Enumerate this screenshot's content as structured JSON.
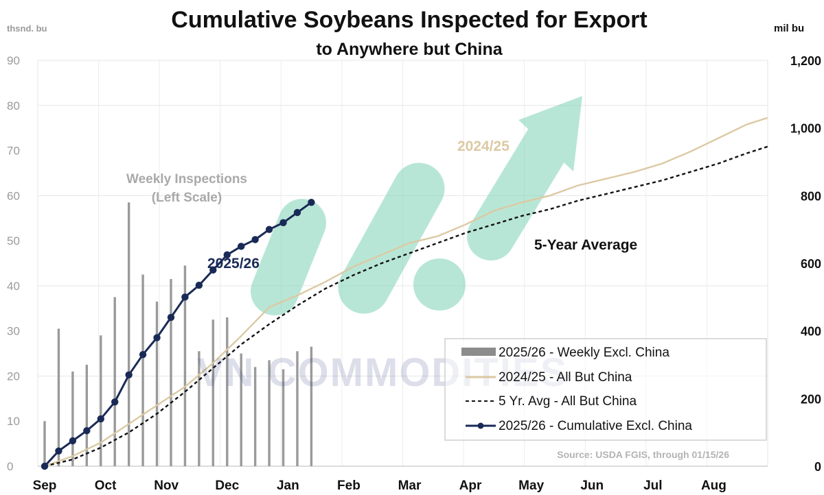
{
  "chart_data": {
    "type": "bar+line",
    "title": "Cumulative Soybeans Inspected for Export",
    "subtitle": "to Anywhere but China",
    "left_axis": {
      "label": "thsnd. bu",
      "ylim": [
        0,
        90
      ],
      "ticks": [
        "0",
        "10",
        "20",
        "30",
        "40",
        "50",
        "60",
        "70",
        "80",
        "90"
      ]
    },
    "right_axis": {
      "label": "mil bu",
      "ylim": [
        0,
        1200
      ],
      "ticks": [
        "0",
        "200",
        "400",
        "600",
        "800",
        "1,000",
        "1,200"
      ]
    },
    "x_ticks": [
      "Sep",
      "Oct",
      "Nov",
      "Dec",
      "Jan",
      "Feb",
      "Mar",
      "Apr",
      "May",
      "Jun",
      "Jul",
      "Aug"
    ],
    "weekly_bars": {
      "name": "2025/26 - Weekly Excl. China",
      "x_weeks": [
        0,
        1,
        2,
        3,
        4,
        5,
        6,
        7,
        8,
        9,
        10,
        11,
        12,
        13,
        14,
        15,
        16,
        17,
        18,
        19
      ],
      "values": [
        10,
        30.5,
        21,
        22.5,
        29,
        37.5,
        58.5,
        42.5,
        36.5,
        41.5,
        44.5,
        25.5,
        32.5,
        33,
        25,
        22,
        23.5,
        21.5,
        25.5,
        26.5
      ]
    },
    "series": [
      {
        "name": "2024/25 - All But China",
        "color": "#dcc9a3",
        "x_weeks": [
          0,
          2,
          4,
          6,
          8,
          10,
          12,
          14,
          16,
          18,
          20,
          22,
          24,
          26,
          28,
          30,
          32,
          34,
          36,
          38,
          40,
          42,
          44,
          46,
          48,
          50,
          51.5
        ],
        "values": [
          0,
          30,
          70,
          125,
          180,
          235,
          305,
          385,
          470,
          505,
          545,
          590,
          625,
          660,
          680,
          715,
          755,
          780,
          800,
          830,
          850,
          870,
          895,
          930,
          970,
          1010,
          1030
        ]
      },
      {
        "name": "5 Yr. Avg - All But China",
        "color": "#111111",
        "dash": true,
        "x_weeks": [
          0,
          2,
          4,
          6,
          8,
          10,
          12,
          14,
          16,
          18,
          20,
          22,
          24,
          26,
          28,
          30,
          32,
          34,
          36,
          38,
          40,
          42,
          44,
          46,
          48,
          50,
          51.5
        ],
        "values": [
          0,
          20,
          55,
          100,
          155,
          220,
          290,
          360,
          420,
          475,
          525,
          565,
          600,
          630,
          660,
          690,
          715,
          740,
          760,
          785,
          805,
          825,
          845,
          870,
          895,
          925,
          945
        ]
      },
      {
        "name": "2025/26 - Cumulative Excl. China",
        "color": "#1a2a57",
        "markers": true,
        "x_weeks": [
          0,
          1,
          2,
          3,
          4,
          5,
          6,
          7,
          8,
          9,
          10,
          11,
          12,
          13,
          14,
          15,
          16,
          17,
          18,
          19
        ],
        "values": [
          0,
          45,
          75,
          105,
          140,
          190,
          270,
          330,
          380,
          440,
          500,
          535,
          580,
          625,
          650,
          670,
          700,
          720,
          750,
          780
        ]
      }
    ],
    "annotations": {
      "weekly_line1": "Weekly Inspections",
      "weekly_line2": "(Left Scale)",
      "label_2526": "2025/26",
      "label_2425": "2024/25",
      "label_5yr": "5-Year Average"
    },
    "legend": [
      "2025/26 - Weekly Excl. China",
      "2024/25 - All But China",
      "5 Yr. Avg - All But China",
      "2025/26 - Cumulative Excl. China"
    ],
    "source": "Source: USDA FGIS, through 01/15/26",
    "watermark": "VN COMMODITIES"
  }
}
